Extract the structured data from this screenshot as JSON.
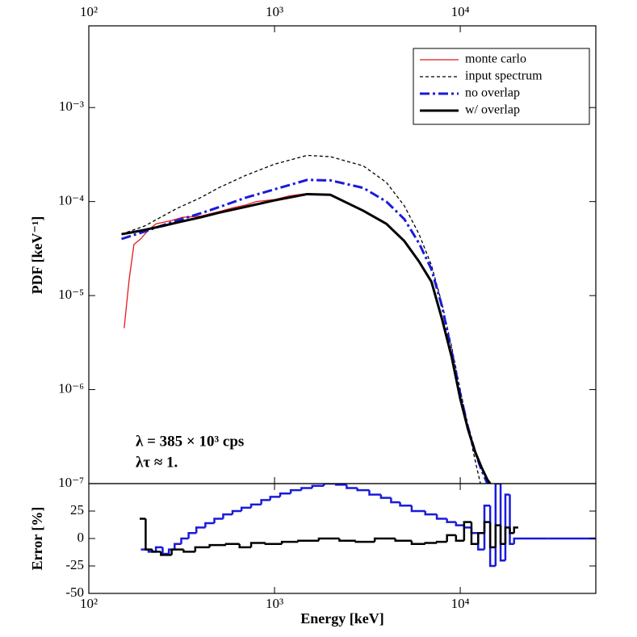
{
  "chart_data": [
    {
      "type": "line",
      "ylabel": "PDF [keV⁻¹]",
      "xlog": true,
      "ylog": true,
      "xlim": [
        100,
        53700
      ],
      "ylim": [
        1e-07,
        0.0074
      ],
      "xticks": [
        {
          "value": 100,
          "label": "10²"
        },
        {
          "value": 1000,
          "label": "10³"
        },
        {
          "value": 10000,
          "label": "10⁴"
        }
      ],
      "yticks": [
        {
          "value": 1e-07,
          "label": "10⁻⁷"
        },
        {
          "value": 1e-06,
          "label": "10⁻⁶"
        },
        {
          "value": 1e-05,
          "label": "10⁻⁵"
        },
        {
          "value": 0.0001,
          "label": "10⁻⁴"
        },
        {
          "value": 0.001,
          "label": "10⁻³"
        }
      ],
      "annotations": [
        "λ = 385 × 10³ cps",
        "λτ ≈ 1."
      ],
      "legend": "upper right",
      "series": [
        {
          "name": "monte carlo",
          "color": "#e8181c",
          "linestyle": "solid",
          "linewidth": 1.3,
          "x": [
            155,
            165,
            175,
            190,
            210,
            230,
            250,
            280,
            320,
            400,
            500,
            600,
            700,
            800,
            1000,
            1200,
            1500,
            2000,
            3000,
            4000,
            5000,
            6000,
            7000,
            8000,
            9000,
            10000,
            11000,
            12000,
            13000,
            14000
          ],
          "values": [
            4.5e-06,
            1.5e-05,
            3.5e-05,
            4e-05,
            5e-05,
            5.8e-05,
            6e-05,
            6.3e-05,
            6.8e-05,
            7e-05,
            7.8e-05,
            8.6e-05,
            9.2e-05,
            0.0001,
            0.000105,
            0.000115,
            0.000122,
            0.000118,
            8e-05,
            5.8e-05,
            3.8e-05,
            2.3e-05,
            1.4e-05,
            5.6e-06,
            2.4e-06,
            8e-07,
            3.8e-07,
            2.2e-07,
            1.5e-07,
            1.1e-07
          ]
        },
        {
          "name": "input spectrum",
          "color": "#000000",
          "linestyle": "dashed",
          "linewidth": 1.3,
          "x": [
            150,
            200,
            250,
            300,
            400,
            500,
            700,
            1000,
            1500,
            2000,
            3000,
            4000,
            5000,
            6000,
            7000,
            8000,
            9000,
            10000,
            11000,
            12000,
            13000
          ],
          "values": [
            4.5e-05,
            5.5e-05,
            7e-05,
            8.5e-05,
            0.00011,
            0.00014,
            0.00019,
            0.00025,
            0.00031,
            0.0003,
            0.00024,
            0.00016,
            9e-05,
            4.5e-05,
            2.1e-05,
            8e-06,
            2.8e-06,
            1e-06,
            4e-07,
            1.8e-07,
            9e-08
          ]
        },
        {
          "name": "no overlap",
          "color": "#1a1adb",
          "linestyle": "dashdot",
          "linewidth": 3,
          "x": [
            150,
            200,
            250,
            300,
            400,
            500,
            700,
            1000,
            1500,
            2000,
            3000,
            4000,
            5000,
            6000,
            7000,
            8000,
            9000,
            10000,
            11000,
            12000,
            13000,
            14000
          ],
          "values": [
            4e-05,
            4.8e-05,
            5.6e-05,
            6.3e-05,
            7.5e-05,
            8.7e-05,
            0.00011,
            0.000135,
            0.00017,
            0.000168,
            0.00014,
            0.0001,
            6.5e-05,
            3.6e-05,
            1.9e-05,
            7.5e-06,
            2.5e-06,
            9e-07,
            4e-07,
            2.2e-07,
            1.4e-07,
            1e-07
          ]
        },
        {
          "name": "w/ overlap",
          "color": "#000000",
          "linestyle": "solid",
          "linewidth": 3,
          "x": [
            150,
            170,
            200,
            250,
            300,
            400,
            500,
            700,
            1000,
            1500,
            2000,
            3000,
            4000,
            5000,
            6000,
            7000,
            8000,
            9000,
            10000,
            11000,
            12000,
            13000,
            14000,
            14500
          ],
          "values": [
            4.5e-05,
            4.7e-05,
            5e-05,
            5.5e-05,
            6e-05,
            6.8e-05,
            7.6e-05,
            8.8e-05,
            0.000103,
            0.00012,
            0.000118,
            8e-05,
            5.8e-05,
            3.8e-05,
            2.3e-05,
            1.4e-05,
            5.5e-06,
            2.2e-06,
            8e-07,
            3.8e-07,
            2.2e-07,
            1.5e-07,
            1.1e-07,
            1e-07
          ]
        }
      ]
    },
    {
      "type": "step",
      "xlabel": "Energy [keV]",
      "ylabel": "Error [%]",
      "xlog": true,
      "xlim": [
        100,
        53700
      ],
      "ylim": [
        -50,
        50
      ],
      "xticks": [
        {
          "value": 100,
          "label": "10²"
        },
        {
          "value": 1000,
          "label": "10³"
        },
        {
          "value": 10000,
          "label": "10⁴"
        }
      ],
      "yticks": [
        -50,
        -25,
        0,
        25
      ],
      "series": [
        {
          "color": "#1a1adb",
          "x": [
            200,
            220,
            240,
            260,
            280,
            300,
            330,
            360,
            400,
            450,
            500,
            560,
            630,
            700,
            800,
            900,
            1000,
            1150,
            1300,
            1500,
            1700,
            2000,
            2300,
            2600,
            3000,
            3500,
            4000,
            4500,
            5000,
            6000,
            7000,
            8000,
            9000,
            10000,
            11000,
            12000,
            13000,
            14000,
            15000,
            16000,
            17000,
            18000,
            19000,
            20000,
            45000
          ],
          "values": [
            -10,
            -12,
            -8,
            -14,
            -10,
            -5,
            0,
            5,
            10,
            14,
            18,
            22,
            25,
            28,
            31,
            35,
            38,
            41,
            44,
            46,
            48,
            50,
            49,
            46,
            44,
            40,
            37,
            33,
            30,
            25,
            22,
            18,
            15,
            12,
            10,
            5,
            -10,
            30,
            -25,
            50,
            -20,
            40,
            -5,
            0,
            0
          ]
        },
        {
          "color": "#000000",
          "x": [
            195,
            210,
            230,
            260,
            300,
            350,
            400,
            500,
            600,
            700,
            800,
            1000,
            1200,
            1500,
            2000,
            2500,
            3000,
            4000,
            5000,
            6000,
            7000,
            8000,
            9000,
            10000,
            11000,
            12000,
            13000,
            14000,
            15000,
            16000,
            17000,
            18000,
            19000,
            20000
          ],
          "values": [
            18,
            -10,
            -12,
            -15,
            -10,
            -12,
            -8,
            -6,
            -5,
            -8,
            -4,
            -5,
            -3,
            -2,
            0,
            -2,
            -3,
            0,
            -2,
            -5,
            -4,
            -3,
            3,
            -2,
            15,
            -5,
            5,
            15,
            -8,
            12,
            -5,
            10,
            5,
            10
          ]
        }
      ]
    }
  ]
}
